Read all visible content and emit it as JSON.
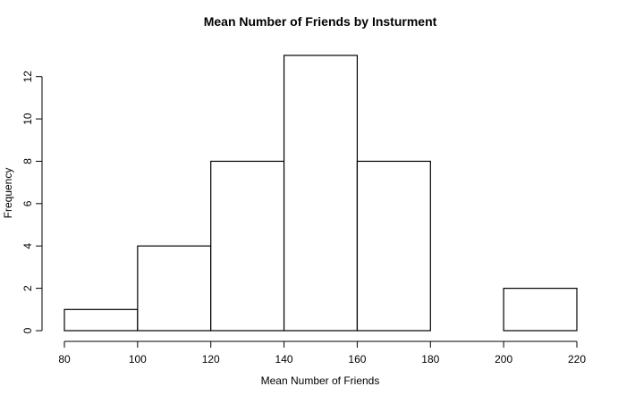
{
  "chart_data": {
    "type": "bar",
    "title": "Mean Number of Friends by Insturment",
    "xlabel": "Mean Number of Friends",
    "ylabel": "Frequency",
    "bins": [
      {
        "start": 80,
        "end": 100,
        "count": 1
      },
      {
        "start": 100,
        "end": 120,
        "count": 4
      },
      {
        "start": 120,
        "end": 140,
        "count": 8
      },
      {
        "start": 140,
        "end": 160,
        "count": 13
      },
      {
        "start": 160,
        "end": 180,
        "count": 8
      },
      {
        "start": 180,
        "end": 200,
        "count": 0
      },
      {
        "start": 200,
        "end": 220,
        "count": 2
      }
    ],
    "xlim": [
      80,
      220
    ],
    "ylim": [
      0,
      13
    ],
    "xticks": [
      "80",
      "100",
      "120",
      "140",
      "160",
      "180",
      "200",
      "220"
    ],
    "yticks": [
      "0",
      "2",
      "4",
      "6",
      "8",
      "10",
      "12"
    ],
    "grid": false
  }
}
